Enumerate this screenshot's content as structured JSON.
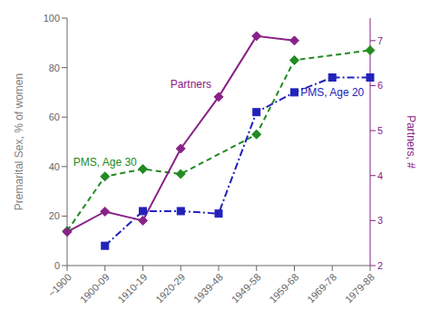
{
  "chart_data": {
    "type": "line",
    "categories": [
      "~1900",
      "1900-09",
      "1910-19",
      "1920-29",
      "1939-48",
      "1949-58",
      "1959-68",
      "1969-78",
      "1979-88"
    ],
    "ylabel": "Premarital Sex, % of women",
    "y2label": "Partners, #",
    "ylim": [
      0,
      100
    ],
    "yticks": [
      0,
      20,
      40,
      60,
      80,
      100
    ],
    "y2lim": [
      2,
      7.5
    ],
    "y2ticks": [
      2,
      3,
      4,
      5,
      6,
      7
    ],
    "grid": false,
    "series": [
      {
        "name": "PMS, Age 30",
        "color": "#228B22",
        "line_style": "dashed",
        "marker": "diamond",
        "x": [
          "~1900",
          "1900-09",
          "1910-19",
          "1920-29",
          "1949-58",
          "1959-68",
          "1979-88"
        ],
        "values": [
          14,
          36,
          39,
          37,
          53,
          83,
          87
        ]
      },
      {
        "name": "PMS, Age 20",
        "color": "#2222bb",
        "line_style": "dashdot",
        "marker": "square",
        "x": [
          "1900-09",
          "1910-19",
          "1920-29",
          "1939-48",
          "1949-58",
          "1959-68",
          "1969-78",
          "1979-88"
        ],
        "values": [
          8,
          22,
          22,
          21,
          62,
          70,
          76,
          76
        ]
      },
      {
        "name": "Partners",
        "color": "#882288",
        "line_style": "solid",
        "marker": "diamond",
        "axis": "y2",
        "x": [
          "~1900",
          "1900-09",
          "1910-19",
          "1920-29",
          "1939-48",
          "1949-58",
          "1959-68"
        ],
        "values": [
          2.75,
          3.2,
          3.0,
          4.6,
          5.75,
          7.1,
          7.0
        ]
      }
    ]
  }
}
